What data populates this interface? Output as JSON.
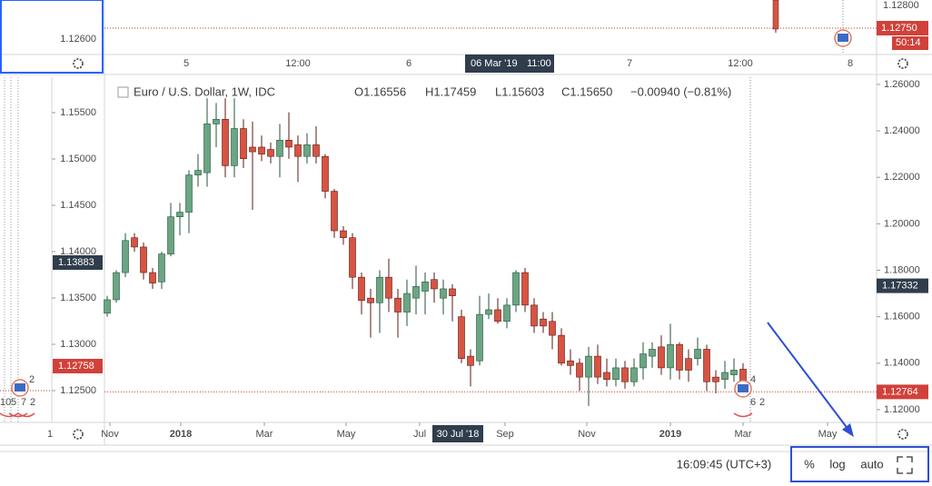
{
  "chart_data": {
    "type": "candlestick",
    "legend": {
      "title": "Euro / U.S. Dollar, 1W, IDC",
      "open": "O1.16556",
      "high": "H1.17459",
      "low": "L1.15603",
      "close": "C1.15650",
      "change": "−0.00940 (−0.81%)"
    },
    "x": [
      0,
      1,
      2,
      3,
      4,
      5,
      6,
      7,
      8,
      9,
      10,
      11,
      12,
      13,
      14,
      15,
      16,
      17,
      18,
      19,
      20,
      21,
      22,
      23,
      24,
      25,
      26,
      27,
      28,
      29,
      30,
      31,
      32,
      33,
      34,
      35,
      36,
      37,
      38,
      39,
      40,
      41,
      42,
      43,
      44,
      45,
      46,
      47,
      48,
      49,
      50,
      51,
      52,
      53,
      54,
      55,
      56,
      57,
      58,
      59,
      60,
      61,
      62,
      63,
      64,
      65,
      66,
      67,
      68,
      69,
      70
    ],
    "open": [
      1.1615,
      1.1673,
      1.179,
      1.194,
      1.19,
      1.179,
      1.175,
      1.187,
      1.203,
      1.205,
      1.221,
      1.222,
      1.243,
      1.245,
      1.225,
      1.241,
      1.233,
      1.233,
      1.232,
      1.229,
      1.236,
      1.234,
      1.229,
      1.234,
      1.229,
      1.214,
      1.197,
      1.194,
      1.177,
      1.168,
      1.166,
      1.177,
      1.168,
      1.162,
      1.168,
      1.171,
      1.176,
      1.168,
      1.172,
      1.16,
      1.143,
      1.141,
      1.161,
      1.163,
      1.158,
      1.165,
      1.179,
      1.165,
      1.159,
      1.158,
      1.152,
      1.141,
      1.14,
      1.134,
      1.143,
      1.136,
      1.133,
      1.138,
      1.132,
      1.138,
      1.143,
      1.147,
      1.138,
      1.148,
      1.142,
      1.142,
      1.146,
      1.134,
      1.133,
      1.135,
      1.1374
    ],
    "high": [
      1.169,
      1.18,
      1.196,
      1.196,
      1.192,
      1.181,
      1.188,
      1.209,
      1.209,
      1.223,
      1.23,
      1.254,
      1.252,
      1.254,
      1.254,
      1.245,
      1.244,
      1.238,
      1.235,
      1.243,
      1.248,
      1.238,
      1.239,
      1.242,
      1.23,
      1.215,
      1.199,
      1.196,
      1.179,
      1.172,
      1.18,
      1.185,
      1.172,
      1.176,
      1.182,
      1.179,
      1.179,
      1.176,
      1.174,
      1.163,
      1.146,
      1.169,
      1.17,
      1.168,
      1.168,
      1.18,
      1.181,
      1.168,
      1.162,
      1.162,
      1.155,
      1.146,
      1.142,
      1.147,
      1.148,
      1.142,
      1.142,
      1.141,
      1.142,
      1.149,
      1.149,
      1.152,
      1.157,
      1.149,
      1.146,
      1.151,
      1.148,
      1.137,
      1.141,
      1.142,
      1.14
    ],
    "low": [
      1.16,
      1.166,
      1.177,
      1.188,
      1.176,
      1.172,
      1.172,
      1.186,
      1.195,
      1.196,
      1.216,
      1.216,
      1.233,
      1.22,
      1.22,
      1.224,
      1.206,
      1.227,
      1.226,
      1.22,
      1.228,
      1.218,
      1.226,
      1.226,
      1.211,
      1.194,
      1.191,
      1.172,
      1.161,
      1.151,
      1.153,
      1.162,
      1.151,
      1.156,
      1.161,
      1.161,
      1.166,
      1.161,
      1.158,
      1.14,
      1.13,
      1.139,
      1.159,
      1.157,
      1.155,
      1.162,
      1.162,
      1.153,
      1.153,
      1.146,
      1.139,
      1.135,
      1.128,
      1.1216,
      1.131,
      1.13,
      1.13,
      1.129,
      1.13,
      1.133,
      1.138,
      1.135,
      1.133,
      1.133,
      1.132,
      1.139,
      1.128,
      1.127,
      1.129,
      1.132,
      1.127
    ],
    "close": [
      1.1673,
      1.179,
      1.1928,
      1.19,
      1.179,
      1.1745,
      1.187,
      1.203,
      1.205,
      1.221,
      1.223,
      1.243,
      1.245,
      1.225,
      1.241,
      1.228,
      1.231,
      1.23,
      1.229,
      1.236,
      1.233,
      1.229,
      1.234,
      1.229,
      1.214,
      1.197,
      1.194,
      1.177,
      1.167,
      1.166,
      1.177,
      1.168,
      1.162,
      1.17,
      1.173,
      1.175,
      1.172,
      1.172,
      1.169,
      1.142,
      1.139,
      1.161,
      1.163,
      1.158,
      1.165,
      1.179,
      1.165,
      1.156,
      1.156,
      1.152,
      1.14,
      1.139,
      1.134,
      1.143,
      1.134,
      1.133,
      1.138,
      1.132,
      1.138,
      1.144,
      1.146,
      1.138,
      1.148,
      1.137,
      1.137,
      1.146,
      1.132,
      1.132,
      1.136,
      1.137,
      1.13
    ],
    "up_color": "#6ba583",
    "down_color": "#d75442",
    "xlim": [
      -0.3,
      84.7
    ],
    "xticks": [
      {
        "value": 0.3,
        "label": "Nov"
      },
      {
        "value": 8.1,
        "label": "2018"
      },
      {
        "value": 17.3,
        "label": "Mar"
      },
      {
        "value": 26.3,
        "label": "May"
      },
      {
        "value": 34.4,
        "label": "Jul"
      },
      {
        "value": 43.8,
        "label": "Sep"
      },
      {
        "value": 52.8,
        "label": "Nov"
      },
      {
        "value": 62,
        "label": "2019"
      },
      {
        "value": 70,
        "label": "Mar"
      },
      {
        "value": 79.3,
        "label": "May"
      }
    ],
    "ylim": [
      1.1145,
      1.2631
    ],
    "yticks": [
      {
        "value": 1.12,
        "label": "1.12000"
      },
      {
        "value": 1.14,
        "label": "1.14000"
      },
      {
        "value": 1.16,
        "label": "1.16000"
      },
      {
        "value": 1.18,
        "label": "1.18000"
      },
      {
        "value": 1.2,
        "label": "1.20000"
      },
      {
        "value": 1.22,
        "label": "1.22000"
      },
      {
        "value": 1.24,
        "label": "1.24000"
      },
      {
        "value": 1.26,
        "label": "1.26000"
      }
    ],
    "price_labels": [
      {
        "value": 1.17332,
        "label": "1.17332",
        "color": "#2f3d4c"
      },
      {
        "value": 1.12764,
        "label": "1.12764",
        "color": "#d0413a"
      }
    ],
    "crosshair_label": "30 Jul '18",
    "events": [
      "4",
      "6",
      "2"
    ]
  },
  "top_panel": {
    "y_label": "1.12800",
    "price_label": "1.12750",
    "countdown": "50:14",
    "left_label": "1.12600",
    "x_labels": [
      "5",
      "12:00",
      "6",
      "7",
      "12:00",
      "8"
    ],
    "crosshair_date": "06 Mar '19",
    "crosshair_time": "11:00"
  },
  "left_panel": {
    "y_labels": [
      "1.15500",
      "1.15000",
      "1.14500",
      "1.14000",
      "1.13500",
      "1.13000",
      "1.12500"
    ],
    "price_labels": [
      "1.13883",
      "1.12758"
    ],
    "x_label": "1",
    "events": [
      "2",
      "10",
      "5",
      "7",
      "2"
    ]
  },
  "bottom_bar": {
    "time": "16:09:45 (UTC+3)",
    "buttons": [
      "%",
      "log",
      "auto"
    ]
  }
}
